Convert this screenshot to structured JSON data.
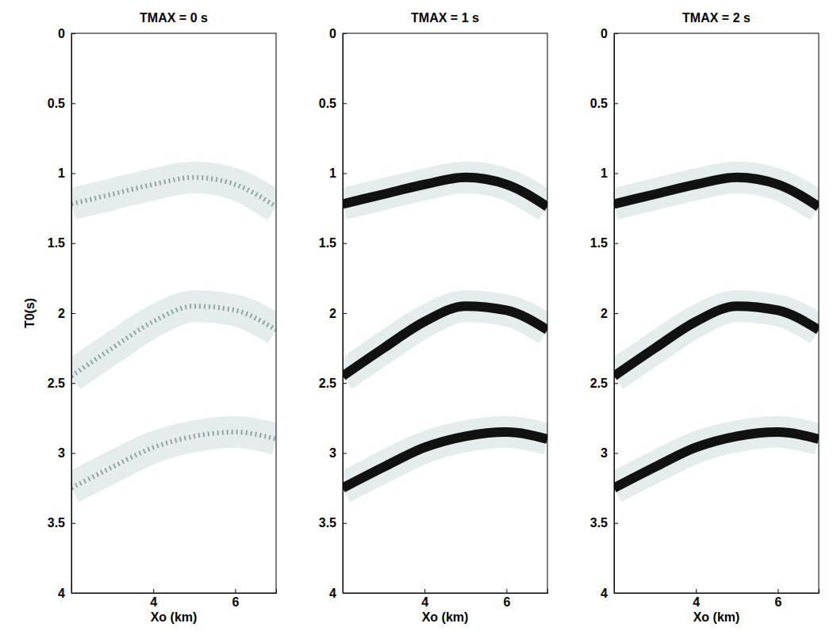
{
  "chart_data": [
    {
      "type": "line",
      "title": "TMAX = 0 s",
      "x_label": "Xo (km)",
      "y_label": "T0(s)",
      "x": [
        2,
        3,
        4,
        5,
        6,
        7
      ],
      "xlim": [
        2,
        7
      ],
      "xticks": [
        4,
        6
      ],
      "ylim": [
        4,
        0
      ],
      "yticks": [
        0,
        0.5,
        1,
        1.5,
        2,
        2.5,
        3,
        3.5,
        4
      ],
      "series": [
        {
          "color": "#8fa5a5",
          "line_style": "dashed",
          "values": [
            1.22,
            1.15,
            1.08,
            1.03,
            1.08,
            1.24
          ]
        },
        {
          "color": "#8fa5a5",
          "line_style": "dashed",
          "values": [
            2.45,
            2.25,
            2.06,
            1.95,
            1.98,
            2.12
          ]
        },
        {
          "color": "#8fa5a5",
          "line_style": "dashed",
          "values": [
            3.25,
            3.1,
            2.96,
            2.88,
            2.85,
            2.9
          ]
        }
      ]
    },
    {
      "type": "line",
      "title": "TMAX = 1 s",
      "x_label": "Xo (km)",
      "x": [
        2,
        3,
        4,
        5,
        6,
        7
      ],
      "xlim": [
        2,
        7
      ],
      "xticks": [
        4,
        6
      ],
      "ylim": [
        4,
        0
      ],
      "yticks": [
        0,
        0.5,
        1,
        1.5,
        2,
        2.5,
        3,
        3.5,
        4
      ],
      "series": [
        {
          "color": "#111111",
          "line_style": "solid",
          "values": [
            1.22,
            1.15,
            1.08,
            1.03,
            1.08,
            1.24
          ]
        },
        {
          "color": "#111111",
          "line_style": "solid",
          "values": [
            2.45,
            2.25,
            2.06,
            1.95,
            1.98,
            2.12
          ]
        },
        {
          "color": "#111111",
          "line_style": "solid",
          "values": [
            3.25,
            3.1,
            2.96,
            2.88,
            2.85,
            2.9
          ]
        }
      ]
    },
    {
      "type": "line",
      "title": "TMAX = 2 s",
      "x_label": "Xo (km)",
      "x": [
        2,
        3,
        4,
        5,
        6,
        7
      ],
      "xlim": [
        2,
        7
      ],
      "xticks": [
        4,
        6
      ],
      "ylim": [
        4,
        0
      ],
      "yticks": [
        0,
        0.5,
        1,
        1.5,
        2,
        2.5,
        3,
        3.5,
        4
      ],
      "series": [
        {
          "color": "#111111",
          "line_style": "solid",
          "values": [
            1.22,
            1.15,
            1.08,
            1.03,
            1.08,
            1.24
          ]
        },
        {
          "color": "#111111",
          "line_style": "solid",
          "values": [
            2.45,
            2.25,
            2.06,
            1.95,
            1.98,
            2.12
          ]
        },
        {
          "color": "#111111",
          "line_style": "solid",
          "values": [
            3.25,
            3.1,
            2.96,
            2.88,
            2.85,
            2.9
          ]
        }
      ]
    }
  ]
}
